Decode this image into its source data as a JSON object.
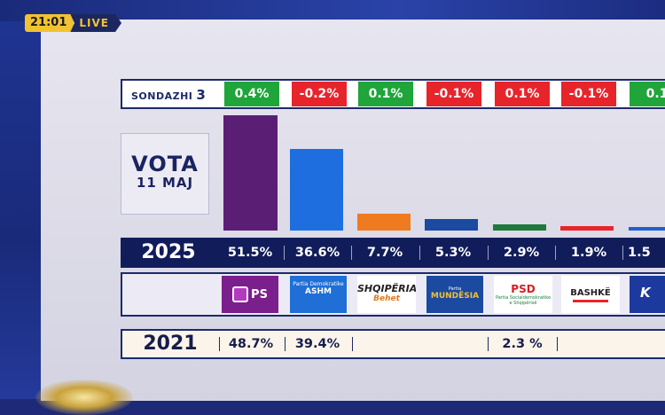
{
  "broadcast": {
    "time": "21:01",
    "live_label": "LIVE"
  },
  "vota": {
    "line1": "VOTA",
    "line2": "11 MAJ"
  },
  "polls": {
    "label": "SONDAZHI",
    "number": "3",
    "changes": [
      {
        "text": "0.4%",
        "color": "#1fa53a"
      },
      {
        "text": "-0.2%",
        "color": "#e8242b"
      },
      {
        "text": "0.1%",
        "color": "#1fa53a"
      },
      {
        "text": "-0.1%",
        "color": "#e8242b"
      },
      {
        "text": "0.1%",
        "color": "#e8242b"
      },
      {
        "text": "-0.1%",
        "color": "#e8242b"
      },
      {
        "text": "0.1",
        "color": "#1fa53a"
      }
    ]
  },
  "results_2025": {
    "year": "2025",
    "values": [
      "51.5%",
      "36.6%",
      "7.7%",
      "5.3%",
      "2.9%",
      "1.9%",
      "1.5"
    ]
  },
  "bars": [
    {
      "value": 51.5,
      "color": "#5a1f74"
    },
    {
      "value": 36.6,
      "color": "#1f6ee0"
    },
    {
      "value": 7.7,
      "color": "#f07a1f"
    },
    {
      "value": 5.3,
      "color": "#1b4aa0"
    },
    {
      "value": 2.9,
      "color": "#1e7a3a"
    },
    {
      "value": 1.9,
      "color": "#e8242b"
    },
    {
      "value": 1.5,
      "color": "#1f5fd0"
    }
  ],
  "logos": [
    {
      "name": "ps",
      "text": "PS"
    },
    {
      "name": "ashm",
      "text": "ASHM",
      "small": "Partia Demokratike"
    },
    {
      "name": "shqiperia-behet",
      "text": "SHQIPËRIA",
      "sub": "Behet"
    },
    {
      "name": "mundesia",
      "text": "MUNDËSIA",
      "small": "Partia"
    },
    {
      "name": "psd",
      "text": "PSD",
      "small": "Partia Socialdemokratike e Shqipërisë"
    },
    {
      "name": "bashke",
      "text": "BASHKË"
    },
    {
      "name": "k",
      "text": "K"
    }
  ],
  "results_2021": {
    "year": "2021",
    "values": [
      "48.7%",
      "39.4%",
      "",
      "",
      "2.3  %",
      "",
      ""
    ]
  }
}
